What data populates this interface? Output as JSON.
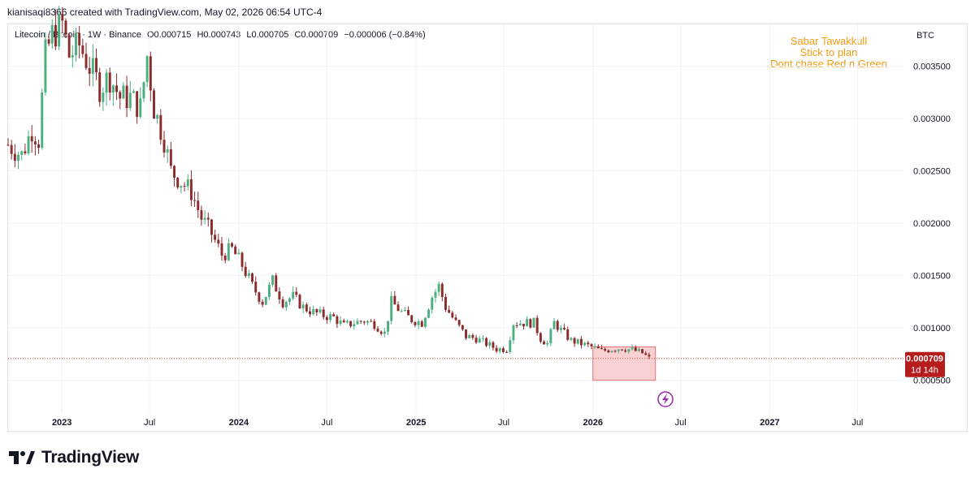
{
  "header": {
    "caption": "kianisaqi8366 created with TradingView.com, May 02, 2026 06:54 UTC-4"
  },
  "symbol": {
    "name": "Litecoin / Bitcoin · 1W · Binance",
    "open": "O0.000715",
    "high": "H0.000743",
    "low": "L0.000705",
    "close": "C0.000709",
    "change": "−0.000006 (−0.84%)"
  },
  "note": {
    "line1": "Sabar Tawakkull",
    "line2": "Stick to plan",
    "line3": "Dont chase Red n Green"
  },
  "price_axis": {
    "currency": "BTC",
    "last_price": "0.000709",
    "countdown": "1d 14h"
  },
  "brand": {
    "name": "TradingView"
  },
  "colors": {
    "up": "#4caf82",
    "down": "#8b2b2b",
    "note": "#f39c12",
    "last_price_badge": "#b71c1c",
    "zone_fill": "#f8c9cc",
    "zone_stroke": "#e57373",
    "lightning": "#9c27b0"
  },
  "icons": {
    "lightning": "lightning-icon",
    "logo": "tradingview-logo-icon"
  },
  "chart_data": {
    "type": "candlestick",
    "title": "Litecoin / Bitcoin · 1W · Binance",
    "ylabel": "BTC",
    "ylim": [
      0.00018,
      0.0039
    ],
    "xlim": [
      "2022-09-12",
      "2027-10-04"
    ],
    "yticks": [
      0.0005,
      0.001,
      0.0015,
      0.002,
      0.0025,
      0.003,
      0.0035
    ],
    "ytick_labels": [
      "0.000500",
      "0.001000",
      "0.001500",
      "0.002000",
      "0.002500",
      "0.003000",
      "0.003500"
    ],
    "xticks": [
      {
        "date": "2023-01-01",
        "label": "2023",
        "bold": true
      },
      {
        "date": "2023-07-01",
        "label": "Jul",
        "bold": false
      },
      {
        "date": "2024-01-01",
        "label": "2024",
        "bold": true
      },
      {
        "date": "2024-07-01",
        "label": "Jul",
        "bold": false
      },
      {
        "date": "2025-01-01",
        "label": "2025",
        "bold": true
      },
      {
        "date": "2025-07-01",
        "label": "Jul",
        "bold": false
      },
      {
        "date": "2026-01-01",
        "label": "2026",
        "bold": true
      },
      {
        "date": "2026-07-01",
        "label": "Jul",
        "bold": false
      },
      {
        "date": "2027-01-01",
        "label": "2027",
        "bold": true
      },
      {
        "date": "2027-07-01",
        "label": "Jul",
        "bold": false
      }
    ],
    "last_price": 0.000709,
    "zone": {
      "x1": "2026-01-01",
      "x2": "2026-05-10",
      "y1": 0.00082,
      "y2": 0.0005
    },
    "series": [
      {
        "name": "LTC/BTC",
        "close_points": [
          [
            "2022-09-12",
            0.00275
          ],
          [
            "2022-10-10",
            0.00265
          ],
          [
            "2022-10-31",
            0.0029
          ],
          [
            "2022-11-14",
            0.0028
          ],
          [
            "2022-11-28",
            0.0036
          ],
          [
            "2022-12-12",
            0.0038
          ],
          [
            "2023-01-02",
            0.0039
          ],
          [
            "2023-01-16",
            0.0036
          ],
          [
            "2023-02-06",
            0.0037
          ],
          [
            "2023-02-27",
            0.0035
          ],
          [
            "2023-03-20",
            0.0033
          ],
          [
            "2023-04-10",
            0.0034
          ],
          [
            "2023-05-01",
            0.0032
          ],
          [
            "2023-05-22",
            0.0032
          ],
          [
            "2023-06-12",
            0.0031
          ],
          [
            "2023-06-26",
            0.0036
          ],
          [
            "2023-07-10",
            0.0031
          ],
          [
            "2023-07-31",
            0.0028
          ],
          [
            "2023-08-14",
            0.0025
          ],
          [
            "2023-09-04",
            0.0024
          ],
          [
            "2023-09-25",
            0.0023
          ],
          [
            "2023-10-16",
            0.00205
          ],
          [
            "2023-11-06",
            0.0019
          ],
          [
            "2023-11-27",
            0.0017
          ],
          [
            "2023-12-18",
            0.00175
          ],
          [
            "2024-01-08",
            0.0016
          ],
          [
            "2024-01-29",
            0.0014
          ],
          [
            "2024-02-19",
            0.00125
          ],
          [
            "2024-03-11",
            0.00145
          ],
          [
            "2024-04-01",
            0.00125
          ],
          [
            "2024-04-22",
            0.0013
          ],
          [
            "2024-05-13",
            0.0012
          ],
          [
            "2024-06-03",
            0.00115
          ],
          [
            "2024-06-24",
            0.00112
          ],
          [
            "2024-07-15",
            0.0011
          ],
          [
            "2024-08-05",
            0.00102
          ],
          [
            "2024-08-26",
            0.00105
          ],
          [
            "2024-09-16",
            0.00107
          ],
          [
            "2024-10-07",
            0.00104
          ],
          [
            "2024-10-28",
            0.00095
          ],
          [
            "2024-11-11",
            0.00125
          ],
          [
            "2024-12-02",
            0.00115
          ],
          [
            "2024-12-23",
            0.00108
          ],
          [
            "2025-01-13",
            0.00105
          ],
          [
            "2025-02-03",
            0.0013
          ],
          [
            "2025-02-17",
            0.0014
          ],
          [
            "2025-03-03",
            0.0012
          ],
          [
            "2025-03-24",
            0.00105
          ],
          [
            "2025-04-14",
            0.00092
          ],
          [
            "2025-05-05",
            0.0009
          ],
          [
            "2025-05-26",
            0.00085
          ],
          [
            "2025-06-16",
            0.0008
          ],
          [
            "2025-07-07",
            0.0008
          ],
          [
            "2025-07-21",
            0.00105
          ],
          [
            "2025-08-11",
            0.00105
          ],
          [
            "2025-09-01",
            0.00105
          ],
          [
            "2025-09-15",
            0.0009
          ],
          [
            "2025-09-29",
            0.00085
          ],
          [
            "2025-10-13",
            0.00105
          ],
          [
            "2025-10-27",
            0.00098
          ],
          [
            "2025-11-17",
            0.00088
          ],
          [
            "2025-12-08",
            0.00085
          ],
          [
            "2025-12-29",
            0.00082
          ],
          [
            "2026-01-19",
            0.00078
          ],
          [
            "2026-02-09",
            0.0008
          ],
          [
            "2026-03-02",
            0.00081
          ],
          [
            "2026-03-23",
            0.00079
          ],
          [
            "2026-04-13",
            0.00076
          ],
          [
            "2026-04-27",
            0.000709
          ]
        ]
      }
    ]
  }
}
